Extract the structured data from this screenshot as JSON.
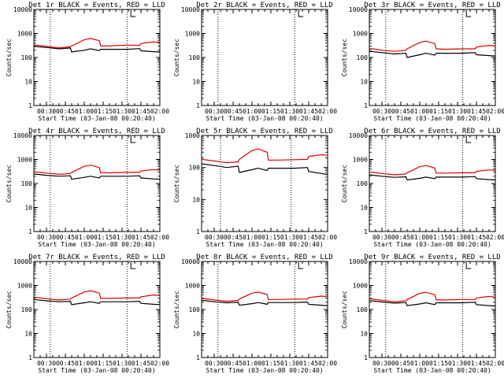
{
  "figure": {
    "title_template": "Det {det} BLACK = Events, RED = LLD",
    "xlabel": "Start Time (03-Jan-08 00:20:40)",
    "ylabel": "Counts/sec",
    "colors": {
      "events": "#000000",
      "lld": "#e00000",
      "axes": "#000000",
      "background": "#ffffff"
    }
  },
  "chart_data": [
    {
      "type": "line",
      "det": "1r",
      "title": "Det 1r BLACK = Events, RED = LLD",
      "xlabel": "Start Time (03-Jan-08 00:20:40)",
      "ylabel": "Counts/sec",
      "y_scale": "log",
      "ylim": [
        1,
        10000
      ],
      "xlim": [
        "00:20",
        "02:00"
      ],
      "x_ticks": [
        "00:30",
        "00:45",
        "01:00",
        "01:15",
        "01:30",
        "01:45",
        "02:00"
      ],
      "y_ticks": [
        "1",
        "10",
        "100",
        "1000",
        "10000"
      ],
      "vlines": [
        "00:33",
        "01:34"
      ],
      "bracket": "01:37",
      "series": [
        {
          "name": "Events",
          "color": "#000000",
          "x": [
            "00:20",
            "00:30",
            "00:40",
            "00:49",
            "00:50",
            "01:00",
            "01:05",
            "01:12",
            "01:13",
            "01:20",
            "01:34",
            "01:44",
            "01:45",
            "01:55",
            "02:00"
          ],
          "y": [
            290,
            260,
            230,
            250,
            170,
            200,
            230,
            195,
            220,
            220,
            220,
            235,
            190,
            175,
            170
          ]
        },
        {
          "name": "LLD",
          "color": "#e00000",
          "x": [
            "00:20",
            "00:30",
            "00:40",
            "00:49",
            "00:50",
            "01:00",
            "01:05",
            "01:12",
            "01:13",
            "01:20",
            "01:34",
            "01:44",
            "01:45",
            "01:55",
            "02:00"
          ],
          "y": [
            340,
            290,
            250,
            280,
            300,
            550,
            620,
            500,
            300,
            300,
            330,
            320,
            380,
            450,
            420
          ]
        }
      ]
    },
    {
      "type": "line",
      "det": "2r",
      "title": "Det 2r BLACK = Events, RED = LLD",
      "xlabel": "Start Time (03-Jan-08 00:20:40)",
      "ylabel": "Counts/sec",
      "y_scale": "log",
      "ylim": [
        1,
        10000
      ],
      "xlim": [
        "00:20",
        "02:00"
      ],
      "x_ticks": [
        "00:30",
        "00:45",
        "01:00",
        "01:15",
        "01:30",
        "01:45",
        "02:00"
      ],
      "y_ticks": [
        "1",
        "10",
        "100",
        "1000",
        "10000"
      ],
      "vlines": [
        "00:33",
        "01:34"
      ],
      "bracket": "01:37",
      "series": []
    },
    {
      "type": "line",
      "det": "3r",
      "title": "Det 3r BLACK = Events, RED = LLD",
      "xlabel": "Start Time (03-Jan-08 00:20:40)",
      "ylabel": "Counts/sec",
      "y_scale": "log",
      "ylim": [
        1,
        10000
      ],
      "xlim": [
        "00:20",
        "02:00"
      ],
      "x_ticks": [
        "00:30",
        "00:45",
        "01:00",
        "01:15",
        "01:30",
        "01:45",
        "02:00"
      ],
      "y_ticks": [
        "1",
        "10",
        "100",
        "1000",
        "10000"
      ],
      "vlines": [
        "00:33",
        "01:34"
      ],
      "bracket": "01:37",
      "series": [
        {
          "name": "Events",
          "color": "#000000",
          "x": [
            "00:20",
            "00:30",
            "00:40",
            "00:49",
            "00:50",
            "01:00",
            "01:05",
            "01:12",
            "01:13",
            "01:20",
            "01:34",
            "01:44",
            "01:45",
            "01:55",
            "02:00"
          ],
          "y": [
            180,
            160,
            140,
            150,
            100,
            130,
            150,
            125,
            150,
            150,
            150,
            160,
            130,
            120,
            115
          ]
        },
        {
          "name": "LLD",
          "color": "#e00000",
          "x": [
            "00:20",
            "00:30",
            "00:40",
            "00:49",
            "00:50",
            "01:00",
            "01:05",
            "01:12",
            "01:13",
            "01:20",
            "01:34",
            "01:44",
            "01:45",
            "01:55",
            "02:00"
          ],
          "y": [
            240,
            200,
            180,
            200,
            230,
            420,
            480,
            380,
            230,
            220,
            230,
            230,
            270,
            320,
            300
          ]
        }
      ]
    },
    {
      "type": "line",
      "det": "4r",
      "title": "Det 4r BLACK = Events, RED = LLD",
      "xlabel": "Start Time (03-Jan-08 00:20:40)",
      "ylabel": "Counts/sec",
      "y_scale": "log",
      "ylim": [
        1,
        10000
      ],
      "xlim": [
        "00:20",
        "02:00"
      ],
      "x_ticks": [
        "00:30",
        "00:45",
        "01:00",
        "01:15",
        "01:30",
        "01:45",
        "02:00"
      ],
      "y_ticks": [
        "1",
        "10",
        "100",
        "1000",
        "10000"
      ],
      "vlines": [
        "00:33",
        "01:34"
      ],
      "bracket": "01:37",
      "series": [
        {
          "name": "Events",
          "color": "#000000",
          "x": [
            "00:20",
            "00:30",
            "00:40",
            "00:49",
            "00:50",
            "01:00",
            "01:05",
            "01:12",
            "01:13",
            "01:20",
            "01:34",
            "01:44",
            "01:45",
            "01:55",
            "02:00"
          ],
          "y": [
            250,
            220,
            200,
            210,
            150,
            180,
            200,
            170,
            200,
            200,
            200,
            210,
            170,
            155,
            150
          ]
        },
        {
          "name": "LLD",
          "color": "#e00000",
          "x": [
            "00:20",
            "00:30",
            "00:40",
            "00:49",
            "00:50",
            "01:00",
            "01:05",
            "01:12",
            "01:13",
            "01:20",
            "01:34",
            "01:44",
            "01:45",
            "01:55",
            "02:00"
          ],
          "y": [
            310,
            270,
            240,
            260,
            290,
            520,
            580,
            460,
            280,
            280,
            290,
            290,
            330,
            380,
            360
          ]
        }
      ]
    },
    {
      "type": "line",
      "det": "5r",
      "title": "Det 5r BLACK = Events, RED = LLD",
      "xlabel": "Start Time (03-Jan-08 00:20:40)",
      "ylabel": "Counts/sec",
      "y_scale": "log",
      "ylim": [
        1,
        1000
      ],
      "xlim": [
        "00:20",
        "02:00"
      ],
      "x_ticks": [
        "00:30",
        "00:45",
        "01:00",
        "01:15",
        "01:30",
        "01:45",
        "02:00"
      ],
      "y_ticks": [
        "1",
        "10",
        "100",
        "1000"
      ],
      "vlines": [
        "00:35",
        "01:31"
      ],
      "bracket": null,
      "series": [
        {
          "name": "Events",
          "color": "#000000",
          "x": [
            "00:20",
            "00:30",
            "00:40",
            "00:49",
            "00:50",
            "01:00",
            "01:05",
            "01:12",
            "01:13",
            "01:20",
            "01:34",
            "01:44",
            "01:45",
            "01:55",
            "02:00"
          ],
          "y": [
            130,
            115,
            100,
            110,
            70,
            85,
            95,
            80,
            95,
            95,
            95,
            100,
            75,
            65,
            60
          ]
        },
        {
          "name": "LLD",
          "color": "#e00000",
          "x": [
            "00:20",
            "00:30",
            "00:40",
            "00:49",
            "00:50",
            "01:00",
            "01:05",
            "01:12",
            "01:13",
            "01:20",
            "01:34",
            "01:44",
            "01:45",
            "01:55",
            "02:00"
          ],
          "y": [
            180,
            160,
            140,
            150,
            180,
            340,
            380,
            300,
            170,
            170,
            175,
            180,
            220,
            250,
            240
          ]
        }
      ]
    },
    {
      "type": "line",
      "det": "6r",
      "title": "Det 6r BLACK = Events, RED = LLD",
      "xlabel": "Start Time (03-Jan-08 00:20:40)",
      "ylabel": "Counts/sec",
      "y_scale": "log",
      "ylim": [
        1,
        10000
      ],
      "xlim": [
        "00:20",
        "02:00"
      ],
      "x_ticks": [
        "00:30",
        "00:45",
        "01:00",
        "01:15",
        "01:30",
        "01:45",
        "02:00"
      ],
      "y_ticks": [
        "1",
        "10",
        "100",
        "1000",
        "10000"
      ],
      "vlines": [
        "00:33",
        "01:34"
      ],
      "bracket": "01:37",
      "series": [
        {
          "name": "Events",
          "color": "#000000",
          "x": [
            "00:20",
            "00:30",
            "00:40",
            "00:49",
            "00:50",
            "01:00",
            "01:05",
            "01:12",
            "01:13",
            "01:20",
            "01:34",
            "01:44",
            "01:45",
            "01:55",
            "02:00"
          ],
          "y": [
            230,
            200,
            180,
            190,
            140,
            165,
            185,
            160,
            185,
            185,
            185,
            195,
            160,
            145,
            140
          ]
        },
        {
          "name": "LLD",
          "color": "#e00000",
          "x": [
            "00:20",
            "00:30",
            "00:40",
            "00:49",
            "00:50",
            "01:00",
            "01:05",
            "01:12",
            "01:13",
            "01:20",
            "01:34",
            "01:44",
            "01:45",
            "01:55",
            "02:00"
          ],
          "y": [
            300,
            260,
            230,
            250,
            280,
            500,
            560,
            440,
            270,
            270,
            280,
            280,
            320,
            370,
            350
          ]
        }
      ]
    },
    {
      "type": "line",
      "det": "7r",
      "title": "Det 7r BLACK = Events, RED = LLD",
      "xlabel": "Start Time (03-Jan-08 00:20:40)",
      "ylabel": "Counts/sec",
      "y_scale": "log",
      "ylim": [
        1,
        10000
      ],
      "xlim": [
        "00:20",
        "02:00"
      ],
      "x_ticks": [
        "00:30",
        "00:45",
        "01:00",
        "01:15",
        "01:30",
        "01:45",
        "02:00"
      ],
      "y_ticks": [
        "1",
        "10",
        "100",
        "1000",
        "10000"
      ],
      "vlines": [
        "00:33",
        "01:34"
      ],
      "bracket": "01:37",
      "series": [
        {
          "name": "Events",
          "color": "#000000",
          "x": [
            "00:20",
            "00:30",
            "00:40",
            "00:49",
            "00:50",
            "01:00",
            "01:05",
            "01:12",
            "01:13",
            "01:20",
            "01:34",
            "01:44",
            "01:45",
            "01:55",
            "02:00"
          ],
          "y": [
            260,
            230,
            210,
            220,
            160,
            190,
            210,
            180,
            210,
            210,
            210,
            220,
            180,
            165,
            160
          ]
        },
        {
          "name": "LLD",
          "color": "#e00000",
          "x": [
            "00:20",
            "00:30",
            "00:40",
            "00:49",
            "00:50",
            "01:00",
            "01:05",
            "01:12",
            "01:13",
            "01:20",
            "01:34",
            "01:44",
            "01:45",
            "01:55",
            "02:00"
          ],
          "y": [
            330,
            280,
            250,
            270,
            300,
            540,
            600,
            480,
            290,
            290,
            300,
            300,
            340,
            400,
            380
          ]
        }
      ]
    },
    {
      "type": "line",
      "det": "8r",
      "title": "Det 8r BLACK = Events, RED = LLD",
      "xlabel": "Start Time (03-Jan-08 00:20:40)",
      "ylabel": "Counts/sec",
      "y_scale": "log",
      "ylim": [
        1,
        10000
      ],
      "xlim": [
        "00:20",
        "02:00"
      ],
      "x_ticks": [
        "00:30",
        "00:45",
        "01:00",
        "01:15",
        "01:30",
        "01:45",
        "02:00"
      ],
      "y_ticks": [
        "1",
        "10",
        "100",
        "1000",
        "10000"
      ],
      "vlines": [
        "00:33",
        "01:34"
      ],
      "bracket": "01:37",
      "series": [
        {
          "name": "Events",
          "color": "#000000",
          "x": [
            "00:20",
            "00:30",
            "00:40",
            "00:49",
            "00:50",
            "01:00",
            "01:05",
            "01:12",
            "01:13",
            "01:20",
            "01:34",
            "01:44",
            "01:45",
            "01:55",
            "02:00"
          ],
          "y": [
            240,
            210,
            190,
            200,
            150,
            175,
            195,
            165,
            195,
            195,
            195,
            205,
            165,
            150,
            145
          ]
        },
        {
          "name": "LLD",
          "color": "#e00000",
          "x": [
            "00:20",
            "00:30",
            "00:40",
            "00:49",
            "00:50",
            "01:00",
            "01:05",
            "01:12",
            "01:13",
            "01:20",
            "01:34",
            "01:44",
            "01:45",
            "01:55",
            "02:00"
          ],
          "y": [
            290,
            250,
            220,
            240,
            270,
            480,
            530,
            420,
            260,
            260,
            270,
            270,
            310,
            360,
            340
          ]
        }
      ]
    },
    {
      "type": "line",
      "det": "9r",
      "title": "Det 9r BLACK = Events, RED = LLD",
      "xlabel": "Start Time (03-Jan-08 00:20:40)",
      "ylabel": "Counts/sec",
      "y_scale": "log",
      "ylim": [
        1,
        10000
      ],
      "xlim": [
        "00:20",
        "02:00"
      ],
      "x_ticks": [
        "00:30",
        "00:45",
        "01:00",
        "01:15",
        "01:30",
        "01:45",
        "02:00"
      ],
      "y_ticks": [
        "1",
        "10",
        "100",
        "1000",
        "10000"
      ],
      "vlines": [
        "00:33",
        "01:34"
      ],
      "bracket": "01:37",
      "series": [
        {
          "name": "Events",
          "color": "#000000",
          "x": [
            "00:20",
            "00:30",
            "00:40",
            "00:49",
            "00:50",
            "01:00",
            "01:05",
            "01:12",
            "01:13",
            "01:20",
            "01:34",
            "01:44",
            "01:45",
            "01:55",
            "02:00"
          ],
          "y": [
            235,
            205,
            185,
            195,
            145,
            170,
            190,
            160,
            190,
            190,
            190,
            200,
            160,
            145,
            140
          ]
        },
        {
          "name": "LLD",
          "color": "#e00000",
          "x": [
            "00:20",
            "00:30",
            "00:40",
            "00:49",
            "00:50",
            "01:00",
            "01:05",
            "01:12",
            "01:13",
            "01:20",
            "01:34",
            "01:44",
            "01:45",
            "01:55",
            "02:00"
          ],
          "y": [
            280,
            240,
            210,
            230,
            260,
            470,
            520,
            410,
            250,
            250,
            260,
            260,
            300,
            350,
            330
          ]
        }
      ]
    }
  ]
}
